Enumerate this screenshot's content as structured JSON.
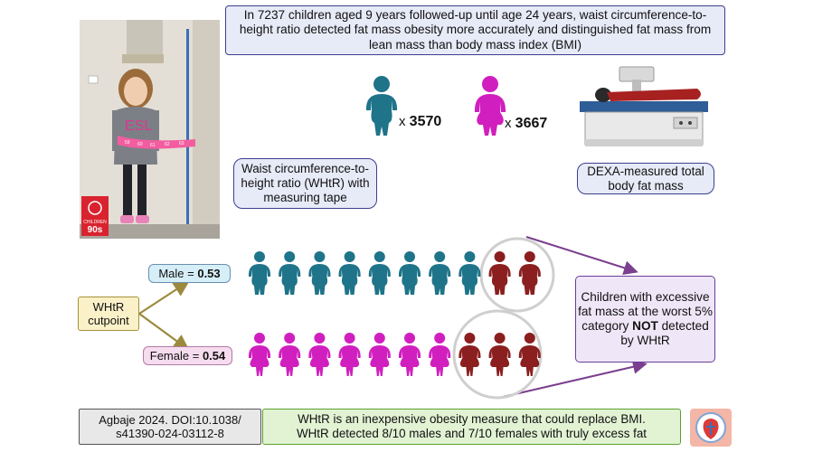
{
  "title": "In 7237 children aged 9 years followed-up until age 24 years, waist circumference-to-height ratio detected fat mass obesity more accurately and distinguished fat mass from lean mass than body mass index (BMI)",
  "counts": {
    "male_prefix": "x",
    "male_value": "3570",
    "female_prefix": "x",
    "female_value": "3667"
  },
  "whtr_box": "Waist circumference-to-height ratio (WHtR) with measuring tape",
  "dexa_box": "DEXA-measured total body fat mass",
  "cutpoint": {
    "label": "WHtR cutpoint",
    "male_label": "Male = ",
    "male_value": "0.53",
    "female_label": "Female = ",
    "female_value": "0.54"
  },
  "children_box": {
    "part1": "Children with excessive fat mass at the worst 5% category ",
    "bold": "NOT",
    "part2": " detected by WHtR"
  },
  "reference": "Agbaje 2024. DOI:10.1038/ s41390-024-03112-8",
  "summary": {
    "line1": "WHtR is an inexpensive obesity measure that could replace BMI.",
    "line2": "WHtR detected 8/10 males and 7/10 females with truly excess fat"
  },
  "logo_text": {
    "line1": "CHILDREN",
    "line2": "90s"
  },
  "photo_tape_marks": [
    "59",
    "60",
    "61",
    "62",
    "63"
  ],
  "colors": {
    "male": "#1f7489",
    "female": "#d11fbf",
    "undetected": "#8b1f1f",
    "title_border": "#3d3f8f",
    "arrow": "#7b3f8e",
    "cut_arrow": "#9b8a3c"
  },
  "proportions": {
    "male_detected": 8,
    "male_total": 10,
    "female_detected": 7,
    "female_total": 10
  }
}
